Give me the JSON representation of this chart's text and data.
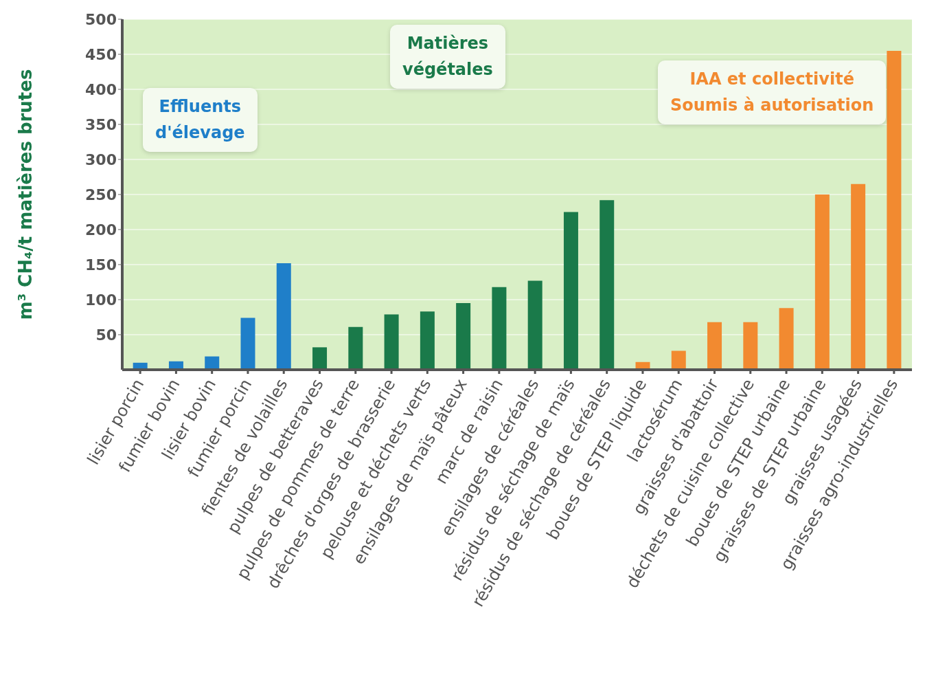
{
  "chart_data": {
    "type": "bar",
    "ylabel": "m³ CH₄/t matières brutes",
    "categories": [
      "lisier porcin",
      "fumier bovin",
      "lisier bovin",
      "fumier porcin",
      "fientes de volailles",
      "pulpes de betteraves",
      "pulpes de pommes de terre",
      "drêches d'orges de brasserie",
      "pelouse et déchets verts",
      "ensilages de maïs pâteux",
      "marc de raisin",
      "ensilages de céréales",
      "résidus de séchage de maïs",
      "résidus de séchage de céréales",
      "boues de STEP liquide",
      "lactosérum",
      "graisses d'abattoir",
      "déchets de cuisine collective",
      "boues de STEP urbaine",
      "graisses de STEP urbaine",
      "graisses usagées",
      "graisses agro-industrielles"
    ],
    "values": [
      10,
      12,
      19,
      74,
      152,
      32,
      61,
      79,
      83,
      95,
      118,
      127,
      225,
      242,
      11,
      27,
      68,
      68,
      88,
      250,
      265,
      455
    ],
    "colors": [
      "#1f7fc9",
      "#1f7fc9",
      "#1f7fc9",
      "#1f7fc9",
      "#1f7fc9",
      "#1a7a4a",
      "#1a7a4a",
      "#1a7a4a",
      "#1a7a4a",
      "#1a7a4a",
      "#1a7a4a",
      "#1a7a4a",
      "#1a7a4a",
      "#1a7a4a",
      "#f28a30",
      "#f28a30",
      "#f28a30",
      "#f28a30",
      "#f28a30",
      "#f28a30",
      "#f28a30",
      "#f28a30"
    ],
    "ylim": [
      0,
      500
    ],
    "yticks": [
      50,
      100,
      150,
      200,
      250,
      300,
      350,
      400,
      450,
      500
    ],
    "grid": "y",
    "annotations": [
      "Effluents\nd'élevage",
      "Matières\nvégétales",
      "IAA et collectivité\nSoumis à autorisation"
    ]
  }
}
